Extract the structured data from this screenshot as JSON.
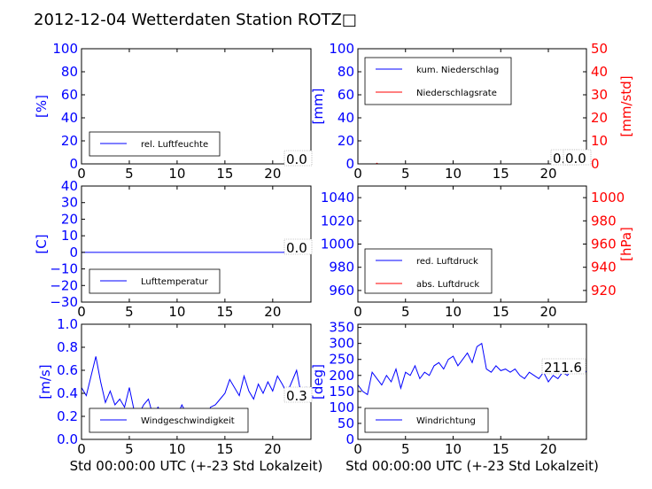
{
  "title": "2012-12-04 Wetterdaten Station ROTZ□",
  "colors": {
    "left_axis": "#0000ff",
    "right_axis": "#ff0000",
    "series_blue": "#0000ff",
    "series_red": "#ff0000",
    "frame": "#000000"
  },
  "chart_data": [
    {
      "id": "humidity",
      "type": "line",
      "xlim": [
        0,
        24
      ],
      "xticks": [
        "0",
        "5",
        "10",
        "15",
        "20"
      ],
      "ylim": [
        0,
        100
      ],
      "yticks": [
        "0",
        "20",
        "40",
        "60",
        "80",
        "100"
      ],
      "ylabel": "[%]",
      "series": [
        {
          "name": "rel. Luftfeuchte",
          "color": "#0000ff",
          "x": [
            0,
            24
          ],
          "y": [
            0,
            0
          ]
        }
      ],
      "annotations": [
        "0.0"
      ],
      "legend_position": "lower-left",
      "grid": false
    },
    {
      "id": "precipitation",
      "type": "line",
      "xlim": [
        0,
        24
      ],
      "xticks": [
        "0",
        "5",
        "10",
        "15",
        "20"
      ],
      "ylim": [
        0,
        100
      ],
      "yticks": [
        "0",
        "20",
        "40",
        "60",
        "80",
        "100"
      ],
      "ylabel": "[mm]",
      "y2lim": [
        0,
        50
      ],
      "y2ticks": [
        "0",
        "10",
        "20",
        "30",
        "40",
        "50"
      ],
      "y2label": "[mm/std]",
      "series": [
        {
          "name": "kum. Niederschlag",
          "color": "#0000ff",
          "x": [
            0,
            24
          ],
          "y": [
            0,
            0
          ]
        },
        {
          "name": "Niederschlagsrate",
          "color": "#ff0000",
          "x": [
            0,
            1.9,
            2.0,
            2.1,
            24
          ],
          "y": [
            0,
            0,
            0.6,
            0,
            0
          ]
        }
      ],
      "annotations": [
        "0.0",
        "0.0"
      ],
      "legend_position": "upper-left",
      "grid": false
    },
    {
      "id": "temperature",
      "type": "line",
      "xlim": [
        0,
        24
      ],
      "xticks": [
        "0",
        "5",
        "10",
        "15",
        "20"
      ],
      "ylim": [
        -30,
        40
      ],
      "yticks": [
        "−30",
        "−20",
        "−10",
        "0",
        "10",
        "20",
        "30",
        "40"
      ],
      "ylabel": "[C]",
      "series": [
        {
          "name": "Lufttemperatur",
          "color": "#0000ff",
          "x": [
            0,
            24
          ],
          "y": [
            0,
            0
          ]
        }
      ],
      "annotations": [
        "0.0"
      ],
      "legend_position": "lower-left",
      "grid": false
    },
    {
      "id": "pressure",
      "type": "line",
      "xlim": [
        0,
        24
      ],
      "xticks": [
        "0",
        "5",
        "10",
        "15",
        "20"
      ],
      "ylim": [
        950,
        1050
      ],
      "yticks": [
        "960",
        "980",
        "1000",
        "1020",
        "1040"
      ],
      "y2ticks": [
        "920",
        "940",
        "960",
        "980",
        "1000"
      ],
      "y2label": "[hPa]",
      "series": [
        {
          "name": "red. Luftdruck",
          "color": "#0000ff",
          "x": [],
          "y": []
        },
        {
          "name": "abs. Luftdruck",
          "color": "#ff0000",
          "x": [],
          "y": []
        }
      ],
      "legend_position": "lower-left",
      "grid": false
    },
    {
      "id": "windspeed",
      "type": "line",
      "xlim": [
        0,
        24
      ],
      "xticks": [
        "0",
        "5",
        "10",
        "15",
        "20"
      ],
      "ylim": [
        0,
        1.0
      ],
      "yticks": [
        "0.0",
        "0.2",
        "0.4",
        "0.6",
        "0.8",
        "1.0"
      ],
      "ylabel": "[m/s]",
      "xlabel": "Std 00:00:00 UTC (+-23 Std Lokalzeit)",
      "series": [
        {
          "name": "Windgeschwindigkeit",
          "color": "#0000ff",
          "x": [
            0,
            0.5,
            1,
            1.5,
            2,
            2.5,
            3,
            3.5,
            4,
            4.5,
            5,
            5.5,
            6,
            6.5,
            7,
            7.5,
            8,
            8.5,
            9,
            9.5,
            10,
            10.5,
            11,
            11.5,
            12,
            12.5,
            13,
            13.5,
            14,
            14.5,
            15,
            15.5,
            16,
            16.5,
            17,
            17.5,
            18,
            18.5,
            19,
            19.5,
            20,
            20.5,
            21,
            21.5,
            22,
            22.5,
            23,
            23.5,
            24
          ],
          "y": [
            0.45,
            0.38,
            0.55,
            0.72,
            0.5,
            0.32,
            0.42,
            0.3,
            0.35,
            0.28,
            0.45,
            0.25,
            0.22,
            0.3,
            0.35,
            0.2,
            0.28,
            0.22,
            0.18,
            0.25,
            0.2,
            0.3,
            0.22,
            0.15,
            0.18,
            0.2,
            0.17,
            0.28,
            0.3,
            0.35,
            0.4,
            0.52,
            0.45,
            0.38,
            0.55,
            0.42,
            0.35,
            0.48,
            0.4,
            0.5,
            0.42,
            0.55,
            0.48,
            0.4,
            0.5,
            0.6,
            0.38,
            0.45,
            0.32
          ]
        }
      ],
      "annotations": [
        "0.3"
      ],
      "legend_position": "lower-left",
      "grid": false
    },
    {
      "id": "winddirection",
      "type": "line",
      "xlim": [
        0,
        24
      ],
      "xticks": [
        "0",
        "5",
        "10",
        "15",
        "20"
      ],
      "ylim": [
        0,
        360
      ],
      "yticks": [
        "0",
        "50",
        "100",
        "150",
        "200",
        "250",
        "300",
        "350"
      ],
      "ylabel": "[deg]",
      "xlabel": "Std 00:00:00 UTC (+-23 Std Lokalzeit)",
      "series": [
        {
          "name": "Windrichtung",
          "color": "#0000ff",
          "x": [
            0,
            0.5,
            1,
            1.5,
            2,
            2.5,
            3,
            3.5,
            4,
            4.5,
            5,
            5.5,
            6,
            6.5,
            7,
            7.5,
            8,
            8.5,
            9,
            9.5,
            10,
            10.5,
            11,
            11.5,
            12,
            12.5,
            13,
            13.5,
            14,
            14.5,
            15,
            15.5,
            16,
            16.5,
            17,
            17.5,
            18,
            18.5,
            19,
            19.5,
            20,
            20.5,
            21,
            21.5,
            22,
            22.5,
            23,
            23.5,
            24
          ],
          "y": [
            170,
            150,
            140,
            210,
            190,
            170,
            200,
            180,
            220,
            160,
            210,
            200,
            230,
            190,
            210,
            200,
            230,
            240,
            220,
            250,
            260,
            230,
            250,
            270,
            240,
            290,
            300,
            220,
            210,
            230,
            215,
            220,
            210,
            220,
            200,
            190,
            210,
            200,
            190,
            210,
            180,
            200,
            190,
            210,
            200,
            220,
            210,
            215,
            211.6
          ]
        }
      ],
      "annotations": [
        "211.6"
      ],
      "legend_position": "lower-left",
      "grid": false
    }
  ]
}
